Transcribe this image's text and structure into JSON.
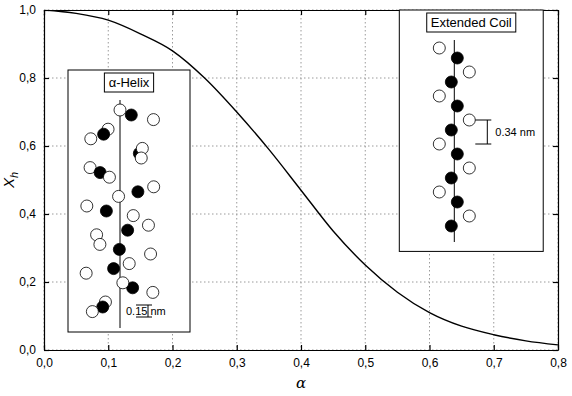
{
  "chart_data": {
    "type": "line",
    "xlabel": "α",
    "ylabel": "Xh",
    "x": [
      0,
      0.05,
      0.1,
      0.15,
      0.2,
      0.25,
      0.3,
      0.35,
      0.4,
      0.45,
      0.5,
      0.55,
      0.6,
      0.65,
      0.7,
      0.75,
      0.8
    ],
    "values": [
      1.0,
      0.99,
      0.97,
      0.93,
      0.88,
      0.8,
      0.7,
      0.59,
      0.47,
      0.35,
      0.25,
      0.17,
      0.11,
      0.07,
      0.045,
      0.027,
      0.015
    ],
    "color": "#000000",
    "xlim": [
      0,
      0.8
    ],
    "ylim": [
      0,
      1
    ],
    "xticks": [
      {
        "value": 0,
        "label": "0,0"
      },
      {
        "value": 0.1,
        "label": "0,1"
      },
      {
        "value": 0.2,
        "label": "0,2"
      },
      {
        "value": 0.3,
        "label": "0,3"
      },
      {
        "value": 0.4,
        "label": "0,4"
      },
      {
        "value": 0.5,
        "label": "0,5"
      },
      {
        "value": 0.6,
        "label": "0,6"
      },
      {
        "value": 0.7,
        "label": "0,7"
      },
      {
        "value": 0.8,
        "label": "0,8"
      }
    ],
    "yticks": [
      {
        "value": 0,
        "label": "0,0"
      },
      {
        "value": 0.2,
        "label": "0,2"
      },
      {
        "value": 0.4,
        "label": "0,4"
      },
      {
        "value": 0.6,
        "label": "0,6"
      },
      {
        "value": 0.8,
        "label": "0,8"
      },
      {
        "value": 1,
        "label": "1,0"
      }
    ],
    "grid": true,
    "annotations": [
      "α-Helix",
      "0.15 nm",
      "Extended Coil",
      "0.34 nm"
    ]
  }
}
